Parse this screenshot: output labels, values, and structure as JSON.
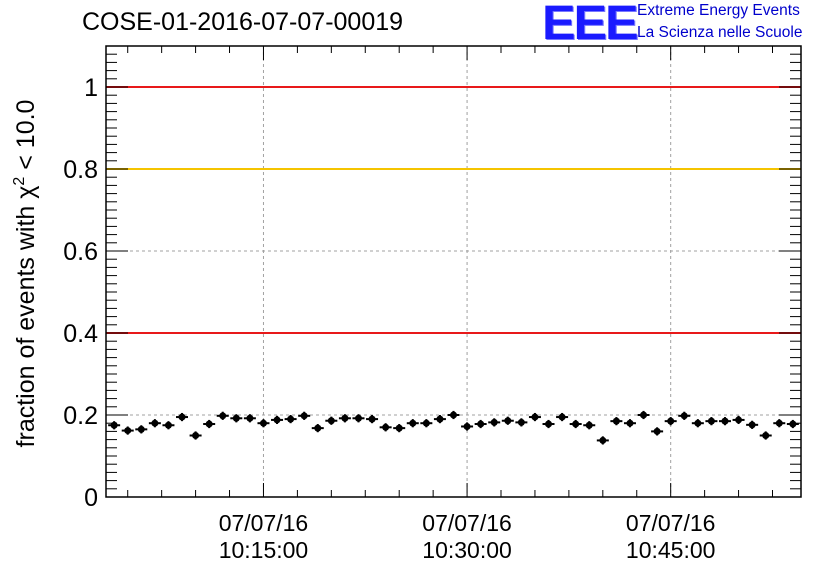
{
  "header": {
    "title": "COSE-01-2016-07-07-00019",
    "logo_text": "EEE",
    "logo_line1": "Extreme Energy Events",
    "logo_line2": "La Scienza nelle Scuole"
  },
  "colors": {
    "logo": "#1a1aff",
    "red_threshold": "#e8191a",
    "yellow_threshold": "#f5c400",
    "grid": "#a0a0a0",
    "marker": "#000000"
  },
  "chart_data": {
    "type": "scatter",
    "title": "COSE-01-2016-07-07-00019",
    "ylabel": "fraction of events with χ² < 10.0",
    "ylabel_parts": {
      "before": "fraction of events with χ",
      "sup": "2",
      "after": " < 10.0"
    },
    "xlabel": "",
    "x_axis_type": "time",
    "xlim_minutes_after_10": [
      3.4,
      54.6
    ],
    "ylim": [
      0,
      1.1
    ],
    "grid": true,
    "y_ticks": [
      {
        "value": 0,
        "label": "0"
      },
      {
        "value": 0.2,
        "label": "0.2"
      },
      {
        "value": 0.4,
        "label": "0.4"
      },
      {
        "value": 0.6,
        "label": "0.6"
      },
      {
        "value": 0.8,
        "label": "0.8"
      },
      {
        "value": 1,
        "label": "1"
      }
    ],
    "x_ticks": [
      {
        "minute": 15,
        "date": "07/07/16",
        "time": "10:15:00"
      },
      {
        "minute": 30,
        "date": "07/07/16",
        "time": "10:30:00"
      },
      {
        "minute": 45,
        "date": "07/07/16",
        "time": "10:45:00"
      }
    ],
    "reference_lines": [
      {
        "y": 1.0,
        "color": "#e8191a"
      },
      {
        "y": 0.8,
        "color": "#f5c400"
      },
      {
        "y": 0.4,
        "color": "#e8191a"
      }
    ],
    "x_minutes": [
      4,
      5,
      6,
      7,
      8,
      9,
      10,
      11,
      12,
      13,
      14,
      15,
      16,
      17,
      18,
      19,
      20,
      21,
      22,
      23,
      24,
      25,
      26,
      27,
      28,
      29,
      30,
      31,
      32,
      33,
      34,
      35,
      36,
      37,
      38,
      39,
      40,
      41,
      42,
      43,
      44,
      45,
      46,
      47,
      48,
      49,
      50,
      51,
      52,
      53,
      54
    ],
    "values": [
      0.175,
      0.162,
      0.165,
      0.18,
      0.175,
      0.195,
      0.15,
      0.178,
      0.198,
      0.192,
      0.192,
      0.18,
      0.188,
      0.19,
      0.198,
      0.168,
      0.186,
      0.192,
      0.192,
      0.19,
      0.17,
      0.168,
      0.18,
      0.18,
      0.19,
      0.2,
      0.172,
      0.178,
      0.182,
      0.186,
      0.182,
      0.195,
      0.178,
      0.195,
      0.178,
      0.175,
      0.138,
      0.185,
      0.18,
      0.2,
      0.16,
      0.185,
      0.198,
      0.18,
      0.185,
      0.185,
      0.188,
      0.176,
      0.15,
      0.18,
      0.178
    ],
    "y_error": 0.01
  }
}
